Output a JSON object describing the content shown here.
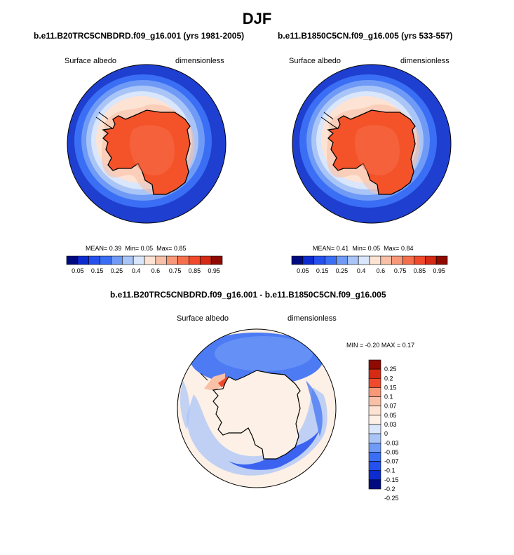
{
  "season": "DJF",
  "colors": {
    "ocean_deep": "#1e3fd0",
    "land": "#f4532a",
    "ramp_abs": [
      "#000a80",
      "#0c2bd0",
      "#2450ee",
      "#3a6ef4",
      "#6f9af6",
      "#a9c5f8",
      "#d9e6fb",
      "#fde3d3",
      "#f9c0a8",
      "#f79878",
      "#f56f4c",
      "#f0492c",
      "#d52a14",
      "#8f0a00"
    ],
    "ramp_diff": [
      "#000a80",
      "#0c2bd0",
      "#2450ee",
      "#3a6ef4",
      "#6f9af6",
      "#a9c5f8",
      "#d9e6fb",
      "#fdf0e6",
      "#fde3d3",
      "#f9c0a8",
      "#f79878",
      "#f0492c",
      "#d52a14",
      "#8f0a00"
    ]
  },
  "panels": [
    {
      "case": "b.e11.B20TRC5CNBDRD.f09_g16.001 (yrs 1981-2005)",
      "variable": "Surface albedo",
      "units": "dimensionless",
      "stats": {
        "mean_label": "MEAN=",
        "mean": "0.39",
        "min_label": "Min=",
        "min": "0.05",
        "max_label": "Max=",
        "max": "0.85"
      },
      "ticks": [
        "0.05",
        "0.15",
        "0.25",
        "0.4",
        "0.6",
        "0.75",
        "0.85",
        "0.95"
      ]
    },
    {
      "case": "b.e11.B1850C5CN.f09_g16.005 (yrs 533-557)",
      "variable": "Surface albedo",
      "units": "dimensionless",
      "stats": {
        "mean_label": "MEAN=",
        "mean": "0.41",
        "min_label": "Min=",
        "min": "0.05",
        "max_label": "Max=",
        "max": "0.84"
      },
      "ticks": [
        "0.05",
        "0.15",
        "0.25",
        "0.4",
        "0.6",
        "0.75",
        "0.85",
        "0.95"
      ]
    }
  ],
  "difference": {
    "title": "b.e11.B20TRC5CNBDRD.f09_g16.001 - b.e11.B1850C5CN.f09_g16.005",
    "variable": "Surface albedo",
    "units": "dimensionless",
    "stats": {
      "min_label": "MIN =",
      "min": "-0.20",
      "max_label": "MAX =",
      "max": "0.17"
    },
    "ticks": [
      "0.25",
      "0.2",
      "0.15",
      "0.1",
      "0.07",
      "0.05",
      "0.03",
      "0",
      "-0.03",
      "-0.05",
      "-0.07",
      "-0.1",
      "-0.15",
      "-0.2",
      "-0.25"
    ]
  }
}
